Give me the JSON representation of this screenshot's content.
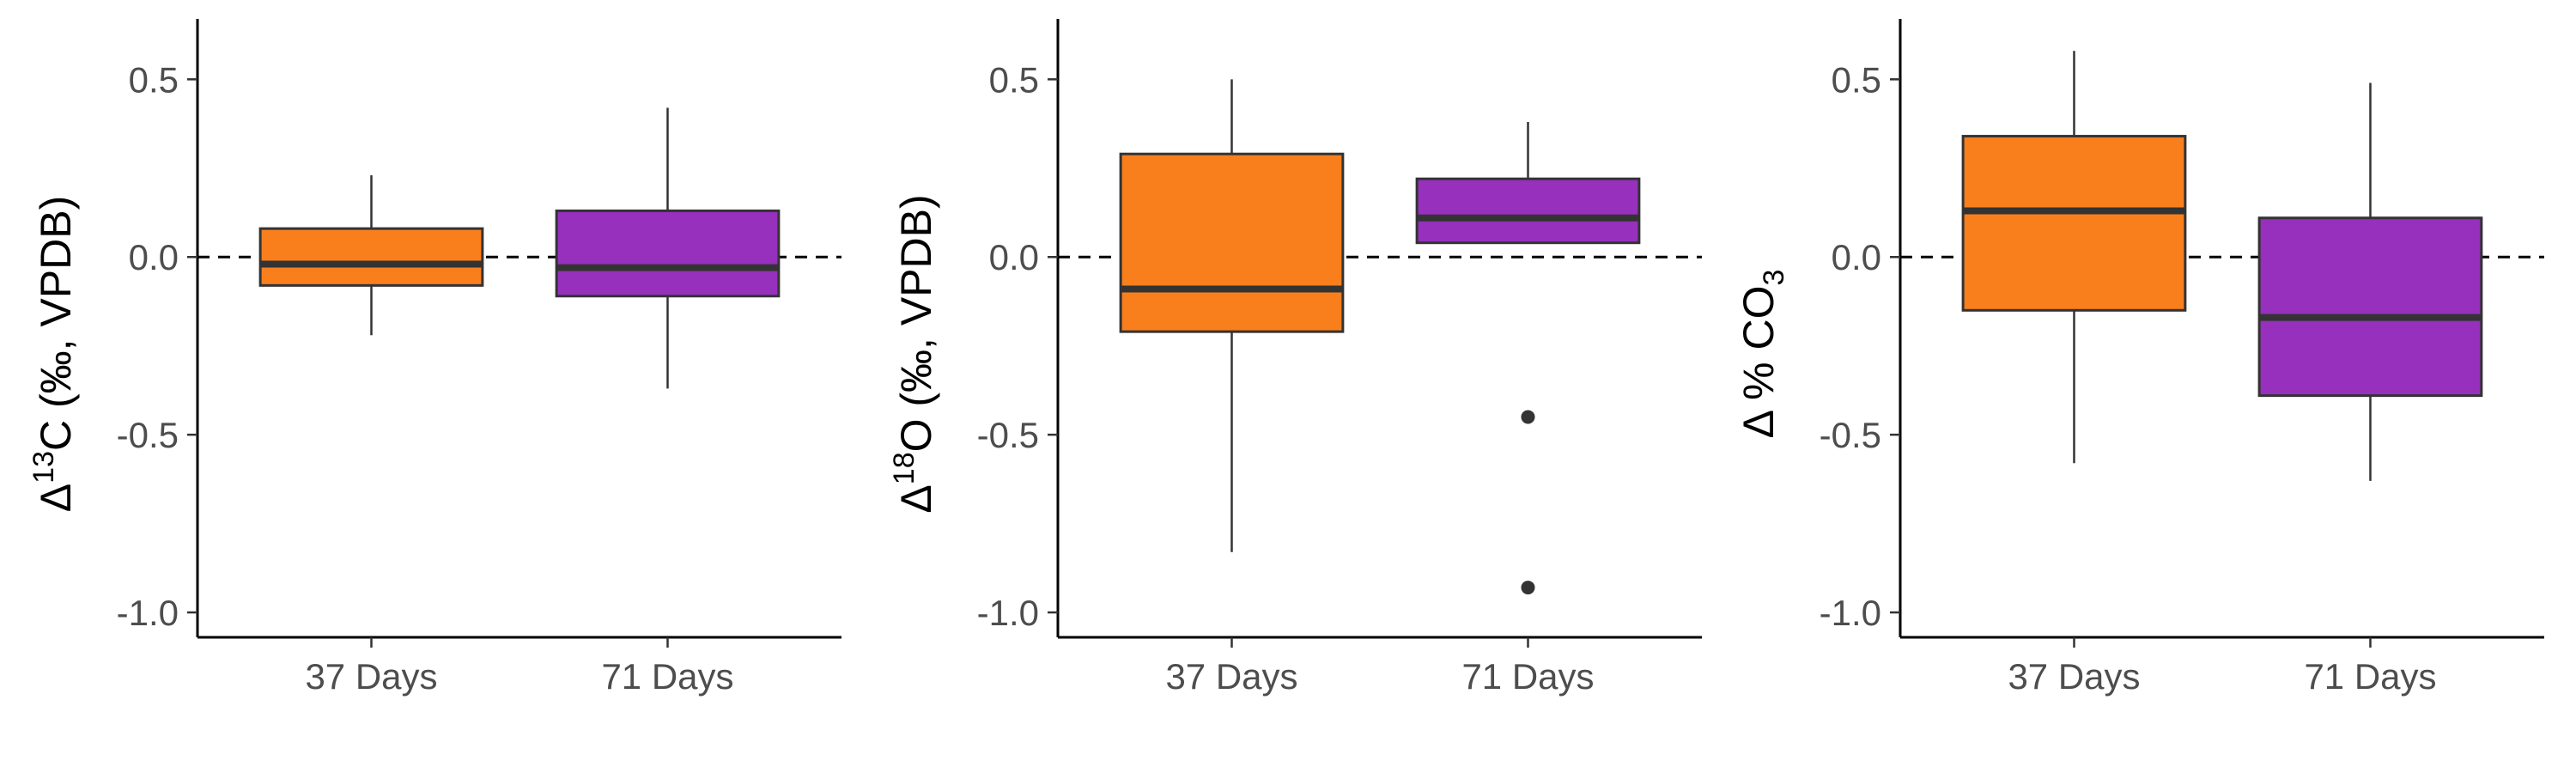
{
  "colors": {
    "group_37": "#f97f1d",
    "group_71": "#9630bd",
    "outline": "#333333"
  },
  "chart_data": [
    {
      "type": "box",
      "ylabel": {
        "delta": "Δ",
        "sup": "13",
        "main": "C (‰, VPDB)"
      },
      "ylim": [
        -1.07,
        0.67
      ],
      "yticks": [
        0.5,
        0.0,
        -0.5,
        -1.0
      ],
      "ytick_labels": [
        "0.5",
        "0.0",
        "-0.5",
        "-1.0"
      ],
      "reference_line": 0,
      "categories": [
        "37 Days",
        "71 Days"
      ],
      "boxes": [
        {
          "name": "37 Days",
          "whisker_low": -0.22,
          "q1": -0.08,
          "median": -0.02,
          "q3": 0.08,
          "whisker_high": 0.23,
          "outliers": []
        },
        {
          "name": "71 Days",
          "whisker_low": -0.37,
          "q1": -0.11,
          "median": -0.03,
          "q3": 0.13,
          "whisker_high": 0.42,
          "outliers": []
        }
      ]
    },
    {
      "type": "box",
      "ylabel": {
        "delta": "Δ",
        "sup": "18",
        "main": "O (‰, VPDB)"
      },
      "ylim": [
        -1.07,
        0.67
      ],
      "yticks": [
        0.5,
        0.0,
        -0.5,
        -1.0
      ],
      "ytick_labels": [
        "0.5",
        "0.0",
        "-0.5",
        "-1.0"
      ],
      "reference_line": 0,
      "categories": [
        "37 Days",
        "71 Days"
      ],
      "boxes": [
        {
          "name": "37 Days",
          "whisker_low": -0.83,
          "q1": -0.21,
          "median": -0.09,
          "q3": 0.29,
          "whisker_high": 0.5,
          "outliers": []
        },
        {
          "name": "71 Days",
          "whisker_low": 0.04,
          "q1": 0.04,
          "median": 0.11,
          "q3": 0.22,
          "whisker_high": 0.38,
          "outliers": [
            -0.45,
            -0.93
          ]
        }
      ]
    },
    {
      "type": "box",
      "ylabel": {
        "delta": "Δ",
        "main": " % CO",
        "sub": "3"
      },
      "ylim": [
        -1.07,
        0.67
      ],
      "yticks": [
        0.5,
        0.0,
        -0.5,
        -1.0
      ],
      "ytick_labels": [
        "0.5",
        "0.0",
        "-0.5",
        "-1.0"
      ],
      "reference_line": 0,
      "categories": [
        "37 Days",
        "71 Days"
      ],
      "boxes": [
        {
          "name": "37 Days",
          "whisker_low": -0.58,
          "q1": -0.15,
          "median": 0.13,
          "q3": 0.34,
          "whisker_high": 0.58,
          "outliers": []
        },
        {
          "name": "71 Days",
          "whisker_low": -0.63,
          "q1": -0.39,
          "median": -0.17,
          "q3": 0.11,
          "whisker_high": 0.49,
          "outliers": []
        }
      ]
    }
  ]
}
